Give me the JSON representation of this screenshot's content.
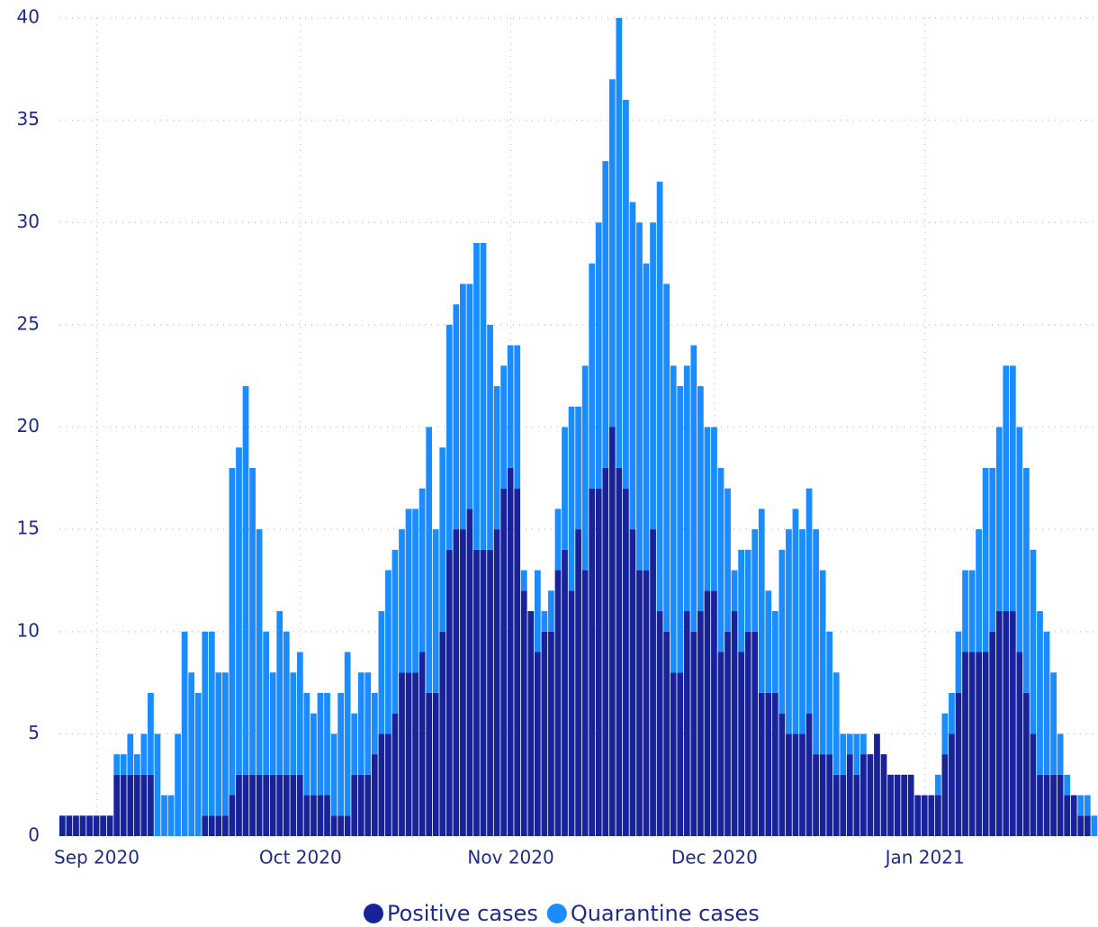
{
  "chart_data": {
    "type": "stacked_bar",
    "categories": [
      null,
      null,
      null,
      null,
      null,
      "Sep 2020",
      null,
      null,
      null,
      null,
      null,
      null,
      null,
      null,
      null,
      null,
      null,
      null,
      null,
      null,
      null,
      null,
      null,
      null,
      null,
      null,
      null,
      null,
      null,
      null,
      null,
      null,
      null,
      null,
      null,
      "Oct 2020",
      null,
      null,
      null,
      null,
      null,
      null,
      null,
      null,
      null,
      null,
      null,
      null,
      null,
      null,
      null,
      null,
      null,
      null,
      null,
      null,
      null,
      null,
      null,
      null,
      null,
      null,
      null,
      null,
      null,
      null,
      "Nov 2020",
      null,
      null,
      null,
      null,
      null,
      null,
      null,
      null,
      null,
      null,
      null,
      null,
      null,
      null,
      null,
      null,
      null,
      null,
      null,
      null,
      null,
      null,
      null,
      null,
      null,
      null,
      null,
      null,
      null,
      "Dec 2020",
      null,
      null,
      null,
      null,
      null,
      null,
      null,
      null,
      null,
      null,
      null,
      null,
      null,
      null,
      null,
      null,
      null,
      null,
      null,
      null,
      null,
      null,
      null,
      null,
      null,
      null,
      null,
      null,
      null,
      null,
      "Jan 2021",
      null,
      null,
      null,
      null,
      null,
      null,
      null,
      null,
      null,
      null,
      null,
      null,
      null,
      null,
      null,
      null,
      null,
      null,
      null,
      null,
      null,
      null,
      null,
      null,
      null
    ],
    "series": [
      {
        "name": "Positive cases",
        "color": "#18239a",
        "values": [
          1,
          1,
          1,
          1,
          1,
          1,
          1,
          1,
          3,
          3,
          3,
          3,
          3,
          3,
          0,
          0,
          0,
          0,
          0,
          0,
          0,
          1,
          1,
          1,
          1,
          2,
          3,
          3,
          3,
          3,
          3,
          3,
          3,
          3,
          3,
          3,
          2,
          2,
          2,
          2,
          1,
          1,
          1,
          3,
          3,
          3,
          4,
          5,
          5,
          6,
          8,
          8,
          8,
          9,
          7,
          7,
          10,
          14,
          15,
          15,
          16,
          14,
          14,
          14,
          15,
          17,
          18,
          17,
          12,
          11,
          9,
          10,
          10,
          13,
          14,
          12,
          15,
          13,
          17,
          17,
          18,
          20,
          18,
          17,
          15,
          13,
          13,
          15,
          11,
          10,
          8,
          8,
          11,
          10,
          11,
          12,
          12,
          9,
          10,
          11,
          9,
          10,
          10,
          7,
          7,
          7,
          6,
          5,
          5,
          5,
          6,
          4,
          4,
          4,
          3,
          3,
          4,
          3,
          4,
          4,
          5,
          4,
          3,
          3,
          3,
          3,
          2,
          2,
          2,
          2,
          4,
          5,
          7,
          9,
          9,
          9,
          9,
          10,
          11,
          11,
          11,
          9,
          7,
          5,
          3,
          3,
          3,
          3,
          2,
          2,
          1,
          1,
          0
        ]
      },
      {
        "name": "Quarantine cases",
        "color": "#1a8cff",
        "values": [
          0,
          0,
          0,
          0,
          0,
          0,
          0,
          0,
          1,
          1,
          2,
          1,
          2,
          4,
          5,
          2,
          2,
          5,
          10,
          8,
          7,
          9,
          9,
          7,
          7,
          16,
          16,
          19,
          15,
          12,
          7,
          5,
          8,
          7,
          5,
          6,
          5,
          4,
          5,
          5,
          4,
          6,
          8,
          3,
          5,
          5,
          3,
          6,
          8,
          8,
          7,
          8,
          8,
          8,
          13,
          8,
          9,
          11,
          11,
          12,
          11,
          15,
          15,
          11,
          7,
          6,
          6,
          7,
          1,
          0,
          4,
          1,
          2,
          3,
          6,
          9,
          6,
          10,
          11,
          13,
          15,
          17,
          22,
          19,
          16,
          17,
          15,
          15,
          21,
          17,
          15,
          14,
          12,
          14,
          11,
          8,
          8,
          9,
          7,
          2,
          5,
          4,
          5,
          9,
          5,
          4,
          8,
          10,
          11,
          10,
          11,
          11,
          9,
          6,
          5,
          2,
          1,
          2,
          1,
          0,
          0,
          0,
          0,
          0,
          0,
          0,
          0,
          0,
          0,
          1,
          2,
          2,
          3,
          4,
          4,
          6,
          9,
          8,
          9,
          12,
          12,
          11,
          11,
          9,
          8,
          7,
          5,
          2,
          1,
          0,
          1,
          1,
          1
        ]
      }
    ],
    "ylim": [
      0,
      40
    ],
    "yticks": [
      0,
      5,
      10,
      15,
      20,
      25,
      30,
      35,
      40
    ],
    "grid": true,
    "legend": "bottom"
  }
}
